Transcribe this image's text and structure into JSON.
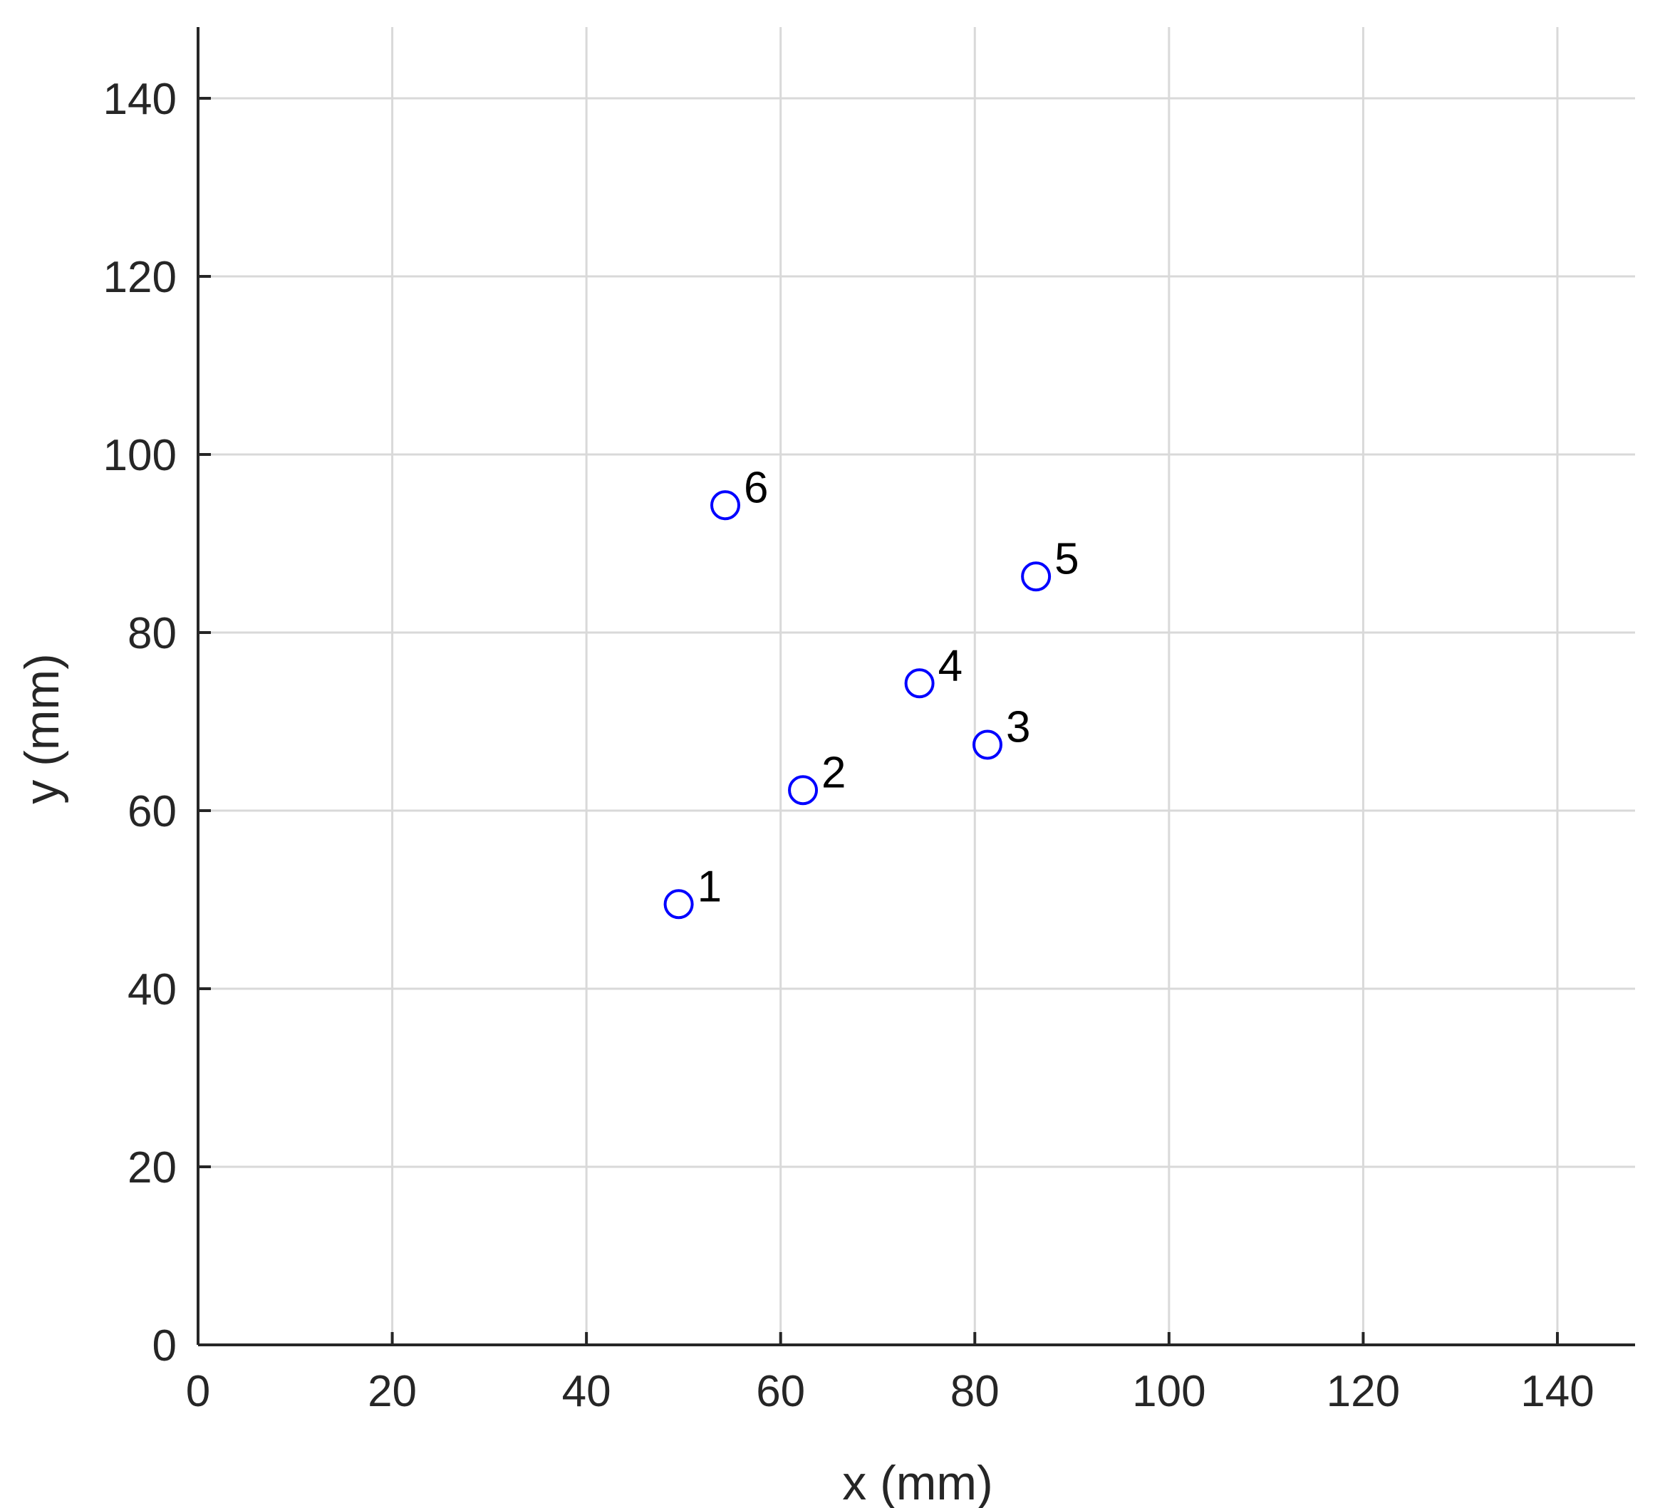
{
  "chart_data": {
    "type": "scatter",
    "xlabel": "x (mm)",
    "ylabel": "y (mm)",
    "xlim": [
      0,
      148
    ],
    "ylim": [
      0,
      148
    ],
    "xticks": [
      0,
      20,
      40,
      60,
      80,
      100,
      120,
      140
    ],
    "yticks": [
      0,
      20,
      40,
      60,
      80,
      100,
      120,
      140
    ],
    "xtick_labels": [
      "0",
      "20",
      "40",
      "60",
      "80",
      "100",
      "120",
      "140"
    ],
    "ytick_labels": [
      "0",
      "20",
      "40",
      "60",
      "80",
      "100",
      "120",
      "140"
    ],
    "grid": true,
    "marker": "open-circle",
    "marker_color": "#0000ff",
    "points": [
      {
        "label": "1",
        "x": 49.5,
        "y": 49.5
      },
      {
        "label": "2",
        "x": 62.3,
        "y": 62.3
      },
      {
        "label": "3",
        "x": 81.3,
        "y": 67.4
      },
      {
        "label": "4",
        "x": 74.3,
        "y": 74.3
      },
      {
        "label": "5",
        "x": 86.3,
        "y": 86.3
      },
      {
        "label": "6",
        "x": 54.3,
        "y": 94.3
      }
    ]
  },
  "colors": {
    "axis": "#262626",
    "grid": "#d9d9d9",
    "marker": "#0000ff",
    "label": "#000000"
  }
}
